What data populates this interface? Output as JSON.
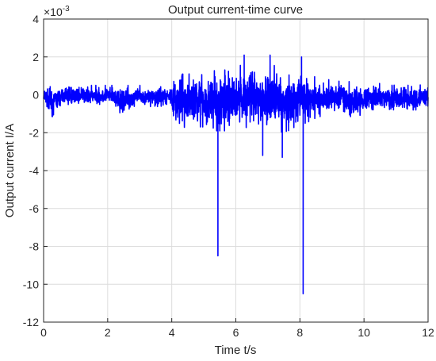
{
  "chart_data": {
    "type": "line",
    "title": "Output current-time curve",
    "xlabel": "Time t/s",
    "ylabel": "Output current I/A",
    "y_exponent_label": "×10",
    "y_exponent_power": "-3",
    "xlim": [
      0,
      12
    ],
    "ylim": [
      -12,
      4
    ],
    "x_ticks": [
      0,
      2,
      4,
      6,
      8,
      10,
      12
    ],
    "y_ticks": [
      -12,
      -10,
      -8,
      -6,
      -4,
      -2,
      0,
      2,
      4
    ],
    "grid": true,
    "line_color": "#0000ff",
    "series": [
      {
        "values_note_free": true,
        "x": [
          0,
          0.3,
          0.6,
          0.9,
          1.2,
          1.5,
          1.8,
          2.1,
          2.4,
          2.7,
          3.0,
          3.3,
          3.6,
          3.9,
          4.2,
          4.5,
          4.8,
          5.1,
          5.4,
          5.44,
          5.5,
          5.7,
          6.0,
          6.26,
          6.5,
          6.84,
          7.07,
          7.3,
          7.45,
          7.8,
          8.05,
          8.1,
          8.2,
          8.5,
          8.9,
          9.3,
          9.7,
          10.1,
          10.5,
          10.9,
          11.3,
          11.7,
          12.0
        ],
        "y_min": [
          -0.6,
          -1.2,
          -0.5,
          -0.6,
          -0.5,
          -0.6,
          -0.5,
          -0.5,
          -1.2,
          -0.7,
          -0.5,
          -0.6,
          -0.6,
          -0.6,
          -1.8,
          -1.8,
          -1.6,
          -1.9,
          -1.9,
          -8.5,
          -1.9,
          -1.9,
          -1.8,
          -1.7,
          -1.8,
          -3.2,
          -1.8,
          -1.8,
          -3.3,
          -1.8,
          -1.8,
          -10.5,
          -1.6,
          -1.2,
          -1.0,
          -0.8,
          -1.3,
          -0.8,
          -0.7,
          -0.8,
          -0.8,
          -0.8,
          -0.6
        ],
        "y_max": [
          0.5,
          0.4,
          0.5,
          0.6,
          0.5,
          0.5,
          0.5,
          0.5,
          0.5,
          0.5,
          0.5,
          0.4,
          0.5,
          0.6,
          1.0,
          1.2,
          1.3,
          1.2,
          1.3,
          1.2,
          1.3,
          1.4,
          1.5,
          2.1,
          1.5,
          1.4,
          2.1,
          1.5,
          1.4,
          1.4,
          2.0,
          1.4,
          1.3,
          0.9,
          0.8,
          0.7,
          0.7,
          0.6,
          0.6,
          0.5,
          0.6,
          0.5,
          0.6
        ]
      }
    ]
  }
}
